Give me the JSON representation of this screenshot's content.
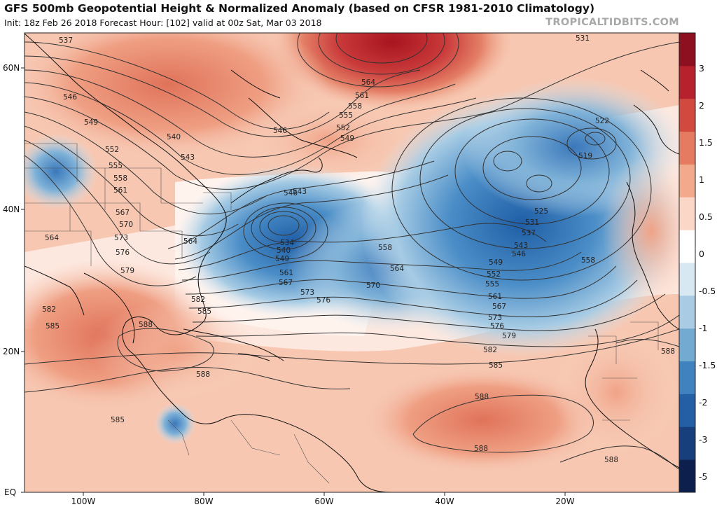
{
  "header": {
    "title": "GFS 500mb Geopotential Height & Normalized Anomaly (based on CFSR 1981-2010 Climatology)",
    "subtitle": "Init: 18z Feb 26 2018   Forecast Hour: [102]   valid at 00z Sat, Mar 03 2018",
    "brand": "TROPICALTIDBITS.COM"
  },
  "map": {
    "lat_labels": [
      "60N",
      "40N",
      "20N",
      "EQ"
    ],
    "lon_labels": [
      "100W",
      "80W",
      "60W",
      "40W",
      "20W"
    ],
    "contour_labels": [
      "537",
      "546",
      "549",
      "552",
      "555",
      "558",
      "561",
      "564",
      "567",
      "570",
      "573",
      "576",
      "579",
      "582",
      "585",
      "588",
      "540",
      "543",
      "546",
      "549",
      "552",
      "555",
      "558",
      "561",
      "564",
      "531",
      "522",
      "519",
      "525",
      "531",
      "537",
      "543",
      "546",
      "549",
      "552",
      "555",
      "561",
      "567",
      "573",
      "576",
      "579",
      "582",
      "585",
      "588",
      "588",
      "588",
      "588",
      "534",
      "540",
      "549",
      "561",
      "567",
      "573",
      "576",
      "570",
      "564",
      "558",
      "558",
      "582",
      "585",
      "588",
      "585",
      "588",
      "564"
    ],
    "anomaly_colors": {
      "strong_positive": "#b7212d",
      "positive": "#e98d72",
      "weak_positive": "#f8d2c0",
      "neutral": "#ffffff",
      "weak_negative": "#d5e6f0",
      "negative": "#6ea7d1",
      "strong_negative": "#2a6aab"
    }
  },
  "colorbar": {
    "labels": [
      "3",
      "2",
      "1.5",
      "1",
      "0.5",
      "0",
      "-0.5",
      "-1",
      "-1.5",
      "-2",
      "-3",
      "-5"
    ],
    "colors": [
      "#8c1020",
      "#b7212d",
      "#d24a3f",
      "#e57b61",
      "#f2a98c",
      "#fbd7c7",
      "#ffffff",
      "#d8e8f2",
      "#a9cbe4",
      "#73aad2",
      "#3f82bf",
      "#245fa5",
      "#173f7b",
      "#0d1f4d"
    ]
  }
}
